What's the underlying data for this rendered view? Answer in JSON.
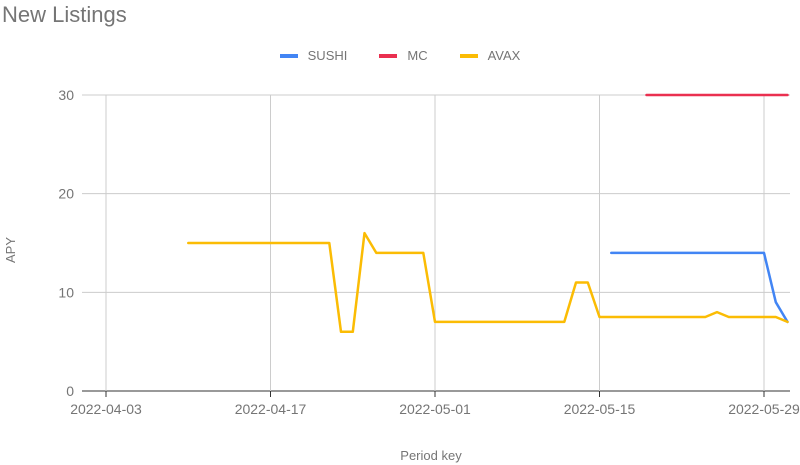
{
  "chart_data": {
    "type": "line",
    "title": "New Listings",
    "xlabel": "Period key",
    "ylabel": "APY",
    "ylim": [
      0,
      30
    ],
    "x_ticks": [
      "2022-04-03",
      "2022-04-17",
      "2022-05-01",
      "2022-05-15",
      "2022-05-29"
    ],
    "y_ticks": [
      "0",
      "10",
      "20",
      "30"
    ],
    "grid": true,
    "legend_position": "top",
    "series": [
      {
        "name": "SUSHI",
        "color": "#4285f4",
        "points": [
          [
            "2022-05-16",
            14
          ],
          [
            "2022-05-29",
            14
          ],
          [
            "2022-05-30",
            9
          ],
          [
            "2022-05-31",
            7
          ]
        ]
      },
      {
        "name": "MC",
        "color": "#ea3050",
        "points": [
          [
            "2022-05-19",
            30
          ],
          [
            "2022-05-31",
            30
          ]
        ]
      },
      {
        "name": "AVAX",
        "color": "#fbbc04",
        "points": [
          [
            "2022-04-10",
            15
          ],
          [
            "2022-04-22",
            15
          ],
          [
            "2022-04-23",
            6
          ],
          [
            "2022-04-24",
            6
          ],
          [
            "2022-04-25",
            16
          ],
          [
            "2022-04-26",
            14
          ],
          [
            "2022-04-30",
            14
          ],
          [
            "2022-05-01",
            7
          ],
          [
            "2022-05-12",
            7
          ],
          [
            "2022-05-13",
            11
          ],
          [
            "2022-05-14",
            11
          ],
          [
            "2022-05-15",
            7.5
          ],
          [
            "2022-05-24",
            7.5
          ],
          [
            "2022-05-25",
            8
          ],
          [
            "2022-05-26",
            7.5
          ],
          [
            "2022-05-30",
            7.5
          ],
          [
            "2022-05-31",
            7
          ]
        ]
      }
    ]
  }
}
